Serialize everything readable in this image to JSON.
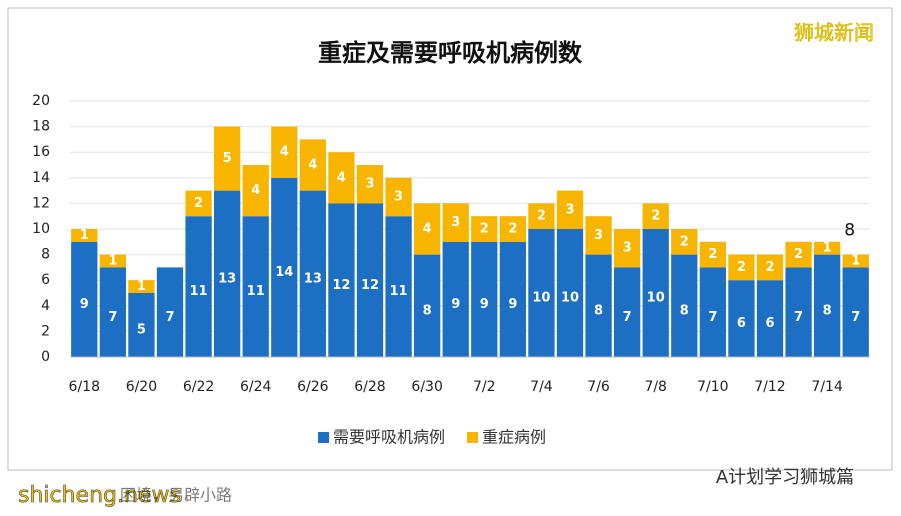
{
  "chart_data": {
    "type": "stacked_bar",
    "title": "重症及需要呼吸机病例数",
    "categories": [
      "6/18",
      null,
      "6/20",
      null,
      "6/22",
      null,
      "6/24",
      null,
      "6/26",
      null,
      "6/28",
      null,
      "6/30",
      null,
      "7/2",
      null,
      "7/4",
      null,
      "7/6",
      null,
      "7/8",
      null,
      "7/10",
      null,
      "7/12",
      null,
      "7/14",
      null
    ],
    "series": [
      {
        "name": "需要呼吸机病例",
        "color": "#1c6fc2",
        "values": [
          9,
          7,
          5,
          7,
          11,
          13,
          11,
          14,
          13,
          12,
          12,
          11,
          8,
          9,
          9,
          9,
          10,
          10,
          8,
          7,
          10,
          8,
          7,
          6,
          6,
          7,
          8,
          7
        ]
      },
      {
        "name": "重症病例",
        "color": "#f7b500",
        "values": [
          1,
          1,
          1,
          0,
          2,
          5,
          4,
          4,
          4,
          4,
          3,
          3,
          4,
          3,
          2,
          2,
          2,
          3,
          3,
          3,
          2,
          2,
          2,
          2,
          2,
          2,
          1,
          1
        ]
      }
    ],
    "annotation": "8",
    "ylim": [
      0,
      20
    ],
    "yticks": [
      0,
      2,
      4,
      6,
      8,
      10,
      12,
      14,
      16,
      18,
      20
    ],
    "grid": true,
    "legend": "bottom"
  },
  "watermarks": {
    "top_right": "狮城新闻",
    "bottom_right": "A计划学习狮城篇",
    "bottom_left": "shicheng.news",
    "footer_text": "困境，另辟小路"
  }
}
